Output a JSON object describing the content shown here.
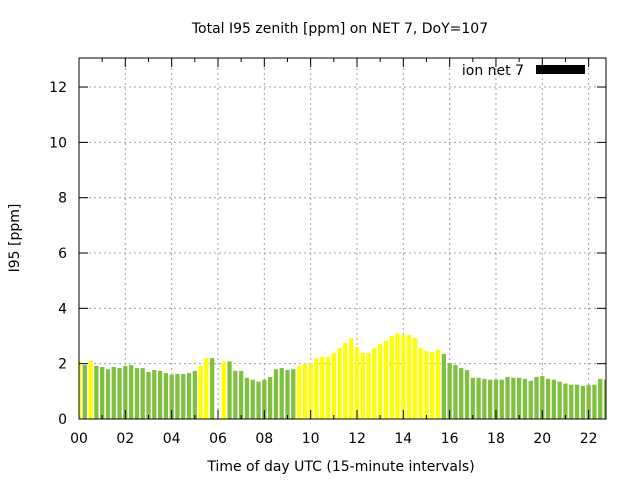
{
  "chart_data": {
    "type": "bar",
    "title": "Total I95 zenith [ppm] on NET 7, DoY=107",
    "xlabel": "Time of day UTC (15-minute intervals)",
    "ylabel": "I95 [ppm]",
    "xlim": [
      0,
      22.75
    ],
    "ylim": [
      0,
      13.05
    ],
    "grid": true,
    "legend": {
      "label": "ion net 7",
      "placement": "top-right",
      "color": "#000000"
    },
    "xticks": [
      0,
      2,
      4,
      6,
      8,
      10,
      12,
      14,
      16,
      18,
      20,
      22
    ],
    "xtick_labels": [
      "00",
      "02",
      "04",
      "06",
      "08",
      "10",
      "12",
      "14",
      "16",
      "18",
      "20",
      "22"
    ],
    "yticks": [
      0,
      2,
      4,
      6,
      8,
      10,
      12
    ],
    "ytick_labels": [
      "0",
      "2",
      "4",
      "6",
      "8",
      "10",
      "12"
    ],
    "interval_hours": 0.25,
    "colors": {
      "g": "#80c040",
      "y": "#ffff00"
    },
    "values": [
      2.1,
      1.95,
      2.1,
      1.92,
      1.88,
      1.8,
      1.88,
      1.84,
      1.92,
      1.95,
      1.84,
      1.84,
      1.7,
      1.77,
      1.74,
      1.66,
      1.6,
      1.63,
      1.63,
      1.66,
      1.74,
      1.92,
      2.2,
      2.2,
      null,
      2.08,
      2.08,
      1.74,
      1.74,
      1.49,
      1.42,
      1.35,
      1.42,
      1.52,
      1.8,
      1.84,
      1.77,
      1.8,
      1.92,
      2.0,
      2.0,
      2.2,
      2.24,
      2.24,
      2.39,
      2.57,
      2.75,
      2.93,
      2.6,
      2.39,
      2.39,
      2.57,
      2.71,
      2.82,
      3.0,
      3.1,
      3.04,
      3.04,
      2.93,
      2.57,
      2.46,
      2.42,
      2.5,
      2.35,
      2.03,
      1.95,
      1.84,
      1.77,
      1.49,
      1.49,
      1.45,
      1.42,
      1.42,
      1.42,
      1.52,
      1.49,
      1.49,
      1.45,
      1.38,
      1.52,
      1.55,
      1.45,
      1.42,
      1.35,
      1.28,
      1.24,
      1.24,
      1.2,
      1.24,
      1.24,
      1.45,
      1.42
    ],
    "bar_colors": "ygyggggggggggggggggggyyxyyggggggggggggyyyyyyyyyyyyyyyyyyyyyyyyyggggggggggggggggggggggggggg"
  }
}
